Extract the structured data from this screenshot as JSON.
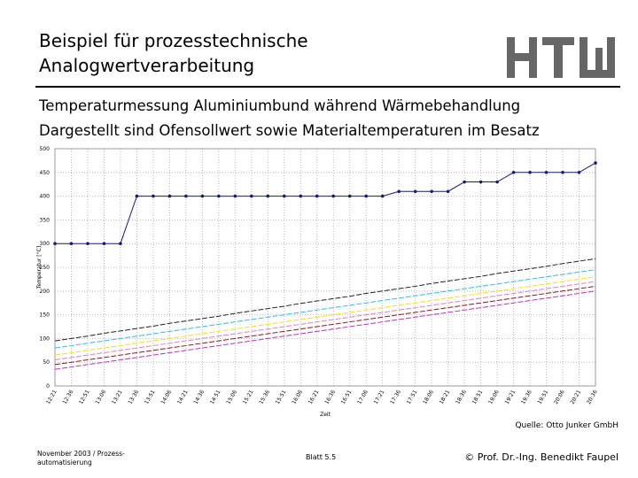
{
  "header": {
    "title_lines": [
      "Beispiel für prozesstechnische",
      "Analogwertverarbeitung"
    ],
    "subtitle_lines": [
      "Temperaturmessung Aluminiumbund während Wärmebehandlung",
      "Dargestellt sind Ofensollwert sowie Materialtemperaturen im Besatz"
    ]
  },
  "chart_data": {
    "type": "line",
    "y_label": "Temperatur [°C]",
    "x_label": "Zeit",
    "categories": [
      "12:21",
      "12:36",
      "12:51",
      "13:06",
      "13:21",
      "13:36",
      "13:51",
      "14:06",
      "14:21",
      "14:36",
      "14:51",
      "15:06",
      "15:21",
      "15:36",
      "15:51",
      "16:06",
      "16:21",
      "16:36",
      "16:51",
      "17:06",
      "17:21",
      "17:36",
      "17:51",
      "18:06",
      "18:21",
      "18:36",
      "18:51",
      "19:06",
      "19:21",
      "19:36",
      "19:51",
      "20:06",
      "20:21",
      "20:36"
    ],
    "ylim": [
      0,
      500
    ],
    "yticks": [
      0,
      50,
      100,
      150,
      200,
      250,
      300,
      350,
      400,
      450,
      500
    ],
    "grid": true,
    "series": [
      {
        "color": "#1a1a7a",
        "markers": true,
        "values": [
          300,
          300,
          300,
          300,
          300,
          400,
          400,
          400,
          400,
          400,
          400,
          400,
          400,
          400,
          400,
          400,
          400,
          400,
          400,
          400,
          400,
          410,
          410,
          410,
          410,
          430,
          430,
          430,
          450,
          450,
          450,
          450,
          450,
          470
        ]
      },
      {
        "color": "#222222",
        "values": [
          95,
          100,
          105,
          111,
          116,
          121,
          126,
          132,
          137,
          142,
          147,
          153,
          158,
          163,
          168,
          174,
          179,
          184,
          189,
          195,
          200,
          205,
          210,
          216,
          221,
          226,
          231,
          237,
          242,
          247,
          252,
          258,
          263,
          268
        ]
      },
      {
        "color": "#33bbee",
        "values": [
          80,
          85,
          90,
          95,
          100,
          105,
          110,
          115,
          120,
          125,
          130,
          135,
          140,
          145,
          150,
          155,
          160,
          165,
          170,
          175,
          180,
          185,
          190,
          195,
          200,
          205,
          210,
          215,
          220,
          225,
          230,
          235,
          240,
          245
        ]
      },
      {
        "color": "#f0e020",
        "values": [
          65,
          70,
          75,
          80,
          85,
          90,
          95,
          100,
          105,
          110,
          115,
          120,
          125,
          130,
          135,
          140,
          145,
          150,
          155,
          160,
          165,
          170,
          175,
          180,
          185,
          190,
          195,
          200,
          205,
          210,
          215,
          220,
          225,
          230
        ]
      },
      {
        "color": "#e080c0",
        "values": [
          55,
          60,
          65,
          70,
          75,
          80,
          85,
          90,
          95,
          100,
          105,
          110,
          115,
          120,
          125,
          130,
          135,
          140,
          145,
          150,
          155,
          160,
          165,
          170,
          175,
          180,
          185,
          190,
          195,
          200,
          205,
          210,
          215,
          220
        ]
      },
      {
        "color": "#8b1a1a",
        "values": [
          45,
          50,
          55,
          60,
          65,
          70,
          75,
          80,
          85,
          90,
          95,
          100,
          105,
          110,
          115,
          120,
          125,
          130,
          135,
          140,
          145,
          150,
          155,
          160,
          165,
          170,
          175,
          180,
          185,
          190,
          195,
          200,
          205,
          210
        ]
      },
      {
        "color": "#c030c0",
        "values": [
          35,
          40,
          45,
          50,
          55,
          60,
          65,
          70,
          75,
          80,
          85,
          90,
          95,
          100,
          105,
          110,
          115,
          120,
          125,
          130,
          135,
          140,
          145,
          150,
          155,
          160,
          165,
          170,
          175,
          180,
          185,
          190,
          195,
          200
        ]
      }
    ]
  },
  "footer": {
    "source": "Quelle: Otto Junker GmbH",
    "date_lines": [
      "November 2003 / Prozess-",
      "automatisierung"
    ],
    "page": "Blatt 5.5",
    "author": "© Prof. Dr.-Ing. Benedikt Faupel"
  }
}
